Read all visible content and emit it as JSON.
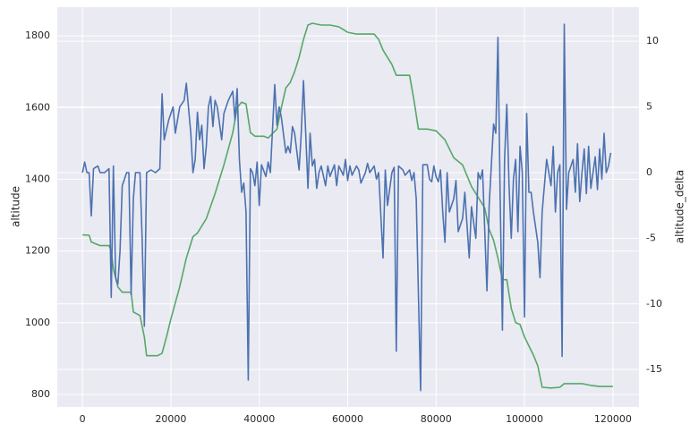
{
  "chart_data": {
    "type": "line",
    "xlabel": null,
    "ylabel": "altitude",
    "y2label": "altitude_delta",
    "xlim": [
      -5700,
      125900
    ],
    "xticks": [
      0,
      20000,
      40000,
      60000,
      80000,
      100000,
      120000
    ],
    "ylim": [
      765,
      1880
    ],
    "yticks": [
      800,
      1000,
      1200,
      1400,
      1600,
      1800
    ],
    "y2lim": [
      -17.85,
      12.6
    ],
    "y2ticks": [
      -15,
      -10,
      -5,
      0,
      5,
      10
    ],
    "grid": true,
    "series": [
      {
        "name": "altitude",
        "color": "#55a868",
        "axis": "y",
        "x": [
          0,
          1500,
          2000,
          3000,
          4000,
          6000,
          6500,
          7000,
          8000,
          9000,
          11000,
          11500,
          13000,
          14000,
          14500,
          16000,
          17000,
          18000,
          19000,
          20000,
          22000,
          23500,
          25000,
          26000,
          28000,
          30000,
          32000,
          34000,
          35000,
          36000,
          37000,
          38000,
          39000,
          41000,
          42000,
          44000,
          45000,
          46000,
          47000,
          48000,
          49000,
          50000,
          51000,
          52000,
          54000,
          56000,
          58000,
          60000,
          62000,
          66000,
          67000,
          68000,
          70000,
          71000,
          74000,
          75000,
          76000,
          78000,
          80000,
          82000,
          84000,
          86000,
          88000,
          90000,
          91000,
          92000,
          93000,
          94000,
          95000,
          96000,
          97000,
          98000,
          99000,
          100000,
          102000,
          103000,
          104000,
          106000,
          108000,
          109000,
          111000,
          113000,
          115000,
          117000,
          120000
        ],
        "values": [
          1245,
          1244,
          1225,
          1220,
          1215,
          1215,
          1200,
          1150,
          1100,
          1085,
          1085,
          1030,
          1020,
          960,
          908,
          908,
          908,
          915,
          960,
          1010,
          1100,
          1180,
          1240,
          1250,
          1290,
          1360,
          1440,
          1530,
          1600,
          1615,
          1610,
          1530,
          1520,
          1520,
          1515,
          1540,
          1600,
          1655,
          1670,
          1700,
          1740,
          1790,
          1830,
          1835,
          1830,
          1830,
          1825,
          1810,
          1805,
          1805,
          1790,
          1760,
          1720,
          1690,
          1690,
          1620,
          1540,
          1540,
          1535,
          1510,
          1460,
          1440,
          1380,
          1340,
          1320,
          1260,
          1230,
          1180,
          1120,
          1120,
          1040,
          1000,
          995,
          960,
          910,
          880,
          820,
          818,
          820,
          830,
          830,
          830,
          825,
          822,
          822
        ]
      },
      {
        "name": "altitude_delta",
        "color": "#4c72b0",
        "axis": "y2",
        "x": [
          0,
          500,
          1000,
          1500,
          2000,
          2500,
          3500,
          4000,
          5000,
          6000,
          6500,
          7000,
          7500,
          8000,
          8500,
          9000,
          10000,
          10500,
          11000,
          11500,
          12000,
          13000,
          13500,
          14000,
          14500,
          15500,
          16500,
          17500,
          18000,
          18500,
          19500,
          20500,
          21000,
          22000,
          23000,
          23500,
          24500,
          25000,
          25500,
          26000,
          26500,
          27000,
          27500,
          28000,
          28500,
          29000,
          29500,
          30000,
          30500,
          31500,
          32000,
          33000,
          34000,
          34500,
          35000,
          35500,
          36000,
          36500,
          37000,
          37500,
          38000,
          38500,
          39000,
          39500,
          40000,
          40500,
          41500,
          42000,
          42500,
          43500,
          44000,
          44500,
          45000,
          46000,
          46500,
          47000,
          47500,
          48000,
          49000,
          49500,
          50000,
          50500,
          51000,
          51500,
          52000,
          52500,
          53000,
          53500,
          54000,
          55000,
          55500,
          56000,
          57000,
          57500,
          58000,
          59000,
          59500,
          60000,
          60500,
          61000,
          62000,
          62500,
          63000,
          64000,
          64500,
          65000,
          66000,
          66500,
          67000,
          68000,
          68500,
          69000,
          70000,
          70500,
          71000,
          71500,
          72500,
          73000,
          74000,
          74500,
          75000,
          75500,
          76500,
          77000,
          78000,
          78500,
          79000,
          79500,
          80000,
          80500,
          81000,
          81500,
          82000,
          82500,
          83000,
          84000,
          84500,
          85000,
          86000,
          86500,
          87500,
          88000,
          89000,
          89500,
          90000,
          90500,
          91500,
          92000,
          93000,
          93500,
          94000,
          94500,
          95000,
          95500,
          96000,
          96500,
          97000,
          97500,
          98000,
          98500,
          99000,
          99500,
          100000,
          100500,
          101000,
          101500,
          102000,
          103000,
          103500,
          104000,
          104500,
          105000,
          106000,
          106500,
          107000,
          107500,
          108000,
          108500,
          109000,
          109500,
          110000,
          111000,
          111500,
          112000,
          112500,
          113000,
          113500,
          114000,
          114500,
          115000,
          116000,
          116500,
          117000,
          117500,
          118000,
          118500,
          119000,
          119500
        ],
        "values": [
          0,
          0.8,
          0,
          0,
          -3.3,
          0.3,
          0.5,
          0,
          0,
          0.3,
          -9.5,
          0.5,
          -8,
          -8.5,
          -6,
          -1,
          0,
          0,
          -9.3,
          -2,
          0,
          0,
          -5,
          -11.7,
          0,
          0.2,
          0,
          0.3,
          6,
          2.5,
          4,
          5,
          3,
          5,
          5.5,
          6.8,
          3,
          0,
          1,
          4.6,
          2.5,
          3.6,
          0.3,
          2,
          5,
          5.8,
          3.5,
          5.5,
          5,
          2.5,
          4.5,
          5.5,
          6.2,
          4,
          6.4,
          1,
          -1.5,
          -0.8,
          -3,
          -15.8,
          0.3,
          0,
          -1,
          0.8,
          -2.5,
          0.6,
          -0.3,
          0.8,
          0,
          6.7,
          3.6,
          5,
          4.2,
          1.5,
          2,
          1.5,
          3.5,
          3,
          0.2,
          3,
          7,
          3,
          -1.2,
          3,
          0.5,
          1,
          -1.2,
          0,
          0.5,
          -1,
          0.5,
          -0.3,
          0.6,
          -1,
          0.5,
          -0.2,
          1,
          -0.6,
          0.5,
          -0.2,
          0.5,
          0.2,
          -0.8,
          0,
          0.7,
          0,
          0.5,
          -0.5,
          0,
          -6.5,
          0.2,
          -2.5,
          0,
          0.4,
          -13.6,
          0.5,
          0.2,
          -0.2,
          0.2,
          -0.6,
          0,
          -2,
          -16.6,
          0.6,
          0.6,
          -0.5,
          -0.7,
          0.5,
          -0.3,
          -0.7,
          0.2,
          -3,
          -5.3,
          0,
          -3,
          -2,
          -0.6,
          -4.5,
          -3.5,
          -1.5,
          -6.5,
          -2.6,
          -5,
          0,
          -0.5,
          0.2,
          -9,
          -2.5,
          3.7,
          3,
          10.3,
          -2,
          -12,
          1,
          5.2,
          -1,
          -5,
          -0.5,
          1,
          -4.5,
          2,
          0,
          -11,
          4.5,
          -1.5,
          -1.5,
          -3,
          -5.3,
          -8,
          -3,
          -1,
          1,
          -1,
          2,
          -3,
          0,
          0.6,
          -14,
          11.3,
          -2.8,
          0,
          1,
          -1.5,
          2.2,
          -2.2,
          0,
          1.8,
          -1.6,
          2,
          -1.2,
          1.2,
          -1.3,
          1.8,
          -0.5,
          3,
          0,
          0.5,
          1.5
        ]
      }
    ]
  }
}
